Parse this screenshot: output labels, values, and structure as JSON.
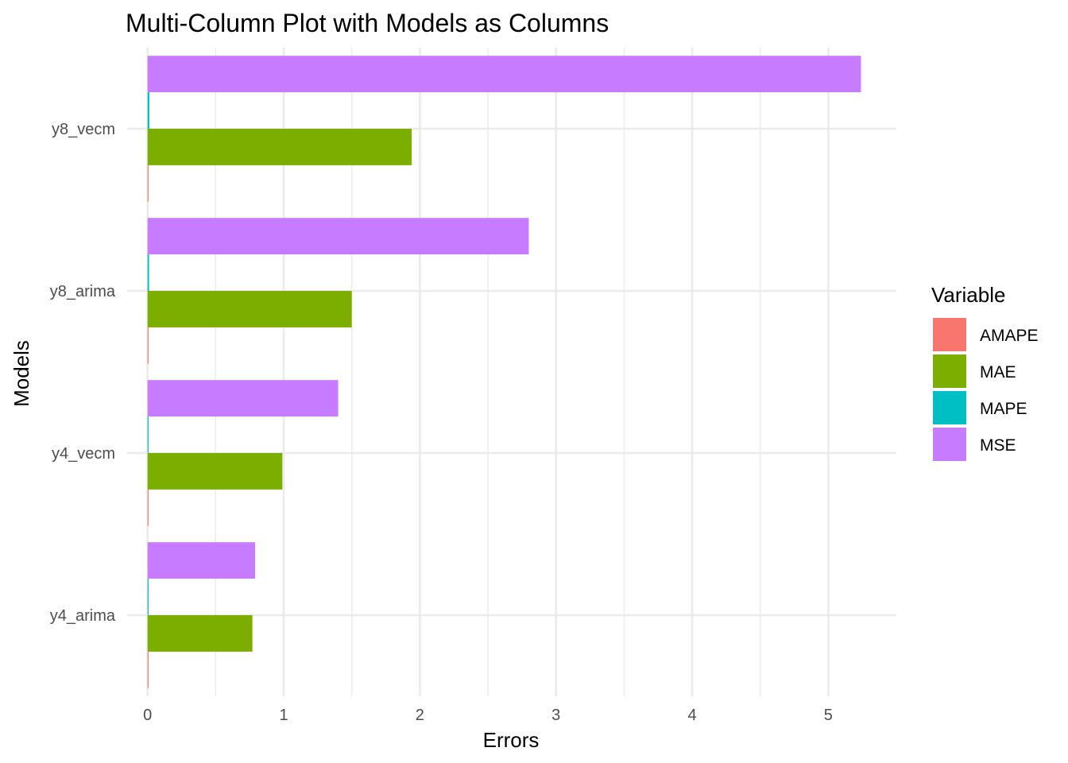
{
  "chart_data": {
    "type": "bar",
    "orientation": "horizontal",
    "title": "Multi-Column Plot with Models as Columns",
    "xlabel": "Errors",
    "ylabel": "Models",
    "categories": [
      "y4_arima",
      "y4_vecm",
      "y8_arima",
      "y8_vecm"
    ],
    "xlim": [
      -0.15,
      5.5
    ],
    "x_ticks": [
      0,
      1,
      2,
      3,
      4,
      5
    ],
    "grid": true,
    "legend": {
      "title": "Variable",
      "position": "right"
    },
    "series": [
      {
        "name": "AMAPE",
        "color": "#F8766D",
        "values": [
          0.003,
          0.003,
          0.004,
          0.005
        ]
      },
      {
        "name": "MAE",
        "color": "#7CAE00",
        "values": [
          0.77,
          0.99,
          1.5,
          1.94
        ]
      },
      {
        "name": "MAPE",
        "color": "#00BFC4",
        "values": [
          0.006,
          0.007,
          0.011,
          0.013
        ]
      },
      {
        "name": "MSE",
        "color": "#C77CFF",
        "values": [
          0.79,
          1.4,
          2.8,
          5.24
        ]
      }
    ]
  }
}
